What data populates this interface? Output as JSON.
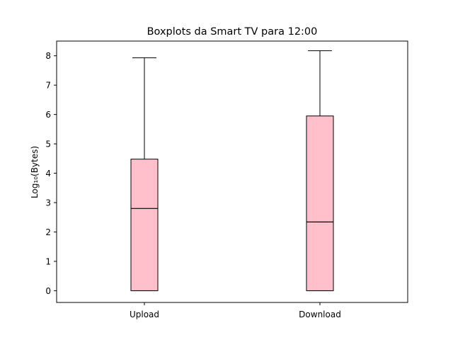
{
  "chart_data": {
    "type": "boxplot",
    "title": "Boxplots da Smart TV para 12:00",
    "xlabel": "",
    "ylabel": "Log₁₀(Bytes)",
    "ylim": [
      -0.4,
      8.5
    ],
    "yticks": [
      0,
      1,
      2,
      3,
      4,
      5,
      6,
      7,
      8
    ],
    "grid": false,
    "box_color": "#ffc0cb",
    "edge_color": "#000000",
    "categories": [
      "Upload",
      "Download"
    ],
    "boxes": [
      {
        "label": "Upload",
        "whisker_low": 0.0,
        "q1": 0.0,
        "median": 2.8,
        "q3": 4.48,
        "whisker_high": 7.93
      },
      {
        "label": "Download",
        "whisker_low": 0.0,
        "q1": 0.0,
        "median": 2.34,
        "q3": 5.95,
        "whisker_high": 8.17
      }
    ]
  }
}
